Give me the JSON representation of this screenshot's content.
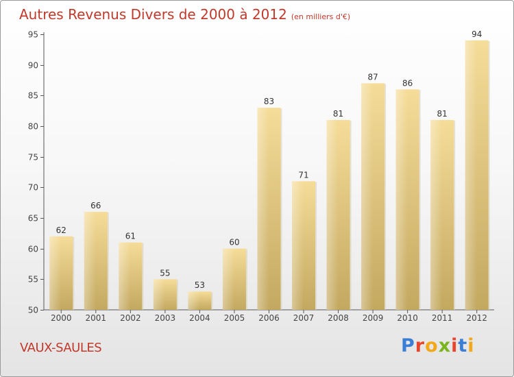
{
  "title": "Autres Revenus Divers de 2000 à 2012",
  "unit_note": "(en milliers d'€)",
  "location": "VAUX-SAULES",
  "logo": {
    "text": "Proxiti",
    "colors": [
      "#3a7fd5",
      "#e8452c",
      "#f2a818",
      "#7ab51d",
      "#e8452c",
      "#3a7fd5",
      "#f2a818"
    ]
  },
  "colors": {
    "title": "#c0392b",
    "bar_top": "#f5dc98",
    "bar_bottom": "#c3a860",
    "axis": "#555555"
  },
  "chart_data": {
    "type": "bar",
    "categories": [
      "2000",
      "2001",
      "2002",
      "2003",
      "2004",
      "2005",
      "2006",
      "2007",
      "2008",
      "2009",
      "2010",
      "2011",
      "2012"
    ],
    "values": [
      62,
      66,
      61,
      55,
      53,
      60,
      83,
      71,
      81,
      87,
      86,
      81,
      94
    ],
    "ylim": [
      50,
      95
    ],
    "yticks": [
      50,
      55,
      60,
      65,
      70,
      75,
      80,
      85,
      90,
      95
    ],
    "title": "Autres Revenus Divers de 2000 à 2012",
    "xlabel": "",
    "ylabel": "",
    "grid": false,
    "data_labels": true
  }
}
